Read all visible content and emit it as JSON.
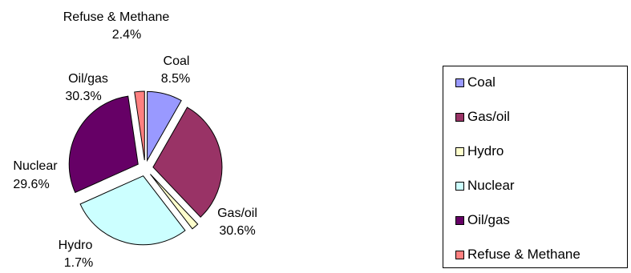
{
  "chart_data": {
    "type": "pie",
    "exploded": true,
    "legend_position": "right",
    "slices": [
      {
        "name": "Coal",
        "label": "Coal",
        "value": 8.5,
        "value_label": "8.5%",
        "color": "#9999ff"
      },
      {
        "name": "Gas/oil",
        "label": "Gas/oil",
        "value": 30.6,
        "value_label": "30.6%",
        "color": "#993366"
      },
      {
        "name": "Hydro",
        "label": "Hydro",
        "value": 1.7,
        "value_label": "1.7%",
        "color": "#ffffcc"
      },
      {
        "name": "Nuclear",
        "label": "Nuclear",
        "value": 29.6,
        "value_label": "29.6%",
        "color": "#ccffff"
      },
      {
        "name": "Oil/gas",
        "label": "Oil/gas",
        "value": 30.3,
        "value_label": "30.3%",
        "color": "#660066"
      },
      {
        "name": "Refuse & Methane",
        "label": "Refuse & Methane",
        "value": 2.4,
        "value_label": "2.4%",
        "color": "#ff8080"
      }
    ]
  }
}
